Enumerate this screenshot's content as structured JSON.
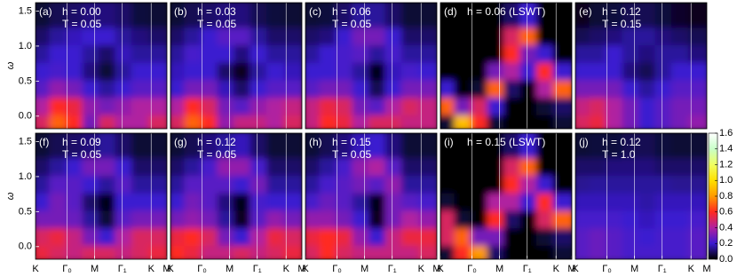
{
  "chart_data": [
    {
      "type": "heatmap",
      "panel_label": "(a)",
      "annotations": [
        "h = 0.00",
        "T = 0.05"
      ],
      "ylabel": "ω",
      "xlim": [
        0,
        1
      ],
      "ylim": [
        -0.18,
        1.62
      ],
      "yticks": [
        {
          "value": 0,
          "label": "0.0"
        },
        0.5,
        {
          "value": 1,
          "label": "1.0"
        },
        1.5
      ],
      "xbins": [
        0,
        0.125,
        0.25,
        0.375,
        0.5,
        0.625,
        0.75,
        0.875,
        1
      ],
      "ybins": [
        -0.18,
        0.05,
        0.3,
        0.55,
        0.8,
        1.05,
        1.3,
        1.62
      ],
      "z": [
        [
          0.5,
          0.7,
          0.6,
          0.3,
          0.5,
          0.4,
          0.4,
          0.5
        ],
        [
          0.4,
          0.6,
          0.55,
          0.35,
          0.3,
          0.35,
          0.4,
          0.4
        ],
        [
          0.25,
          0.35,
          0.3,
          0.2,
          0.15,
          0.2,
          0.25,
          0.25
        ],
        [
          0.2,
          0.22,
          0.2,
          0.12,
          0.05,
          0.15,
          0.2,
          0.2
        ],
        [
          0.15,
          0.2,
          0.2,
          0.15,
          0.1,
          0.18,
          0.15,
          0.15
        ],
        [
          0.1,
          0.15,
          0.18,
          0.2,
          0.2,
          0.15,
          0.12,
          0.1
        ],
        [
          0.05,
          0.08,
          0.1,
          0.12,
          0.12,
          0.1,
          0.06,
          0.05
        ]
      ]
    },
    {
      "type": "heatmap",
      "panel_label": "(b)",
      "annotations": [
        "h = 0.03",
        "T = 0.05"
      ],
      "xlim": [
        0,
        1
      ],
      "ylim": [
        -0.18,
        1.62
      ],
      "xbins": [
        0,
        0.125,
        0.25,
        0.375,
        0.5,
        0.625,
        0.75,
        0.875,
        1
      ],
      "ybins": [
        -0.18,
        0.05,
        0.3,
        0.55,
        0.8,
        1.05,
        1.3,
        1.62
      ],
      "z": [
        [
          0.5,
          0.7,
          0.6,
          0.35,
          0.45,
          0.45,
          0.4,
          0.5
        ],
        [
          0.4,
          0.6,
          0.5,
          0.3,
          0.25,
          0.35,
          0.4,
          0.45
        ],
        [
          0.2,
          0.3,
          0.3,
          0.18,
          0.1,
          0.2,
          0.25,
          0.25
        ],
        [
          0.18,
          0.2,
          0.2,
          0.1,
          0.03,
          0.15,
          0.2,
          0.18
        ],
        [
          0.15,
          0.22,
          0.2,
          0.2,
          0.12,
          0.2,
          0.15,
          0.15
        ],
        [
          0.1,
          0.15,
          0.2,
          0.25,
          0.25,
          0.15,
          0.1,
          0.1
        ],
        [
          0.05,
          0.08,
          0.1,
          0.12,
          0.12,
          0.08,
          0.06,
          0.05
        ]
      ]
    },
    {
      "type": "heatmap",
      "panel_label": "(c)",
      "annotations": [
        "h = 0.06",
        "T = 0.05"
      ],
      "xlim": [
        0,
        1
      ],
      "ylim": [
        -0.18,
        1.62
      ],
      "xbins": [
        0,
        0.125,
        0.25,
        0.375,
        0.5,
        0.625,
        0.75,
        0.875,
        1
      ],
      "ybins": [
        -0.18,
        0.05,
        0.3,
        0.55,
        0.8,
        1.05,
        1.3,
        1.62
      ],
      "z": [
        [
          0.45,
          0.6,
          0.55,
          0.4,
          0.5,
          0.5,
          0.45,
          0.45
        ],
        [
          0.45,
          0.55,
          0.5,
          0.3,
          0.25,
          0.4,
          0.5,
          0.45
        ],
        [
          0.25,
          0.3,
          0.3,
          0.2,
          0.08,
          0.2,
          0.3,
          0.3
        ],
        [
          0.2,
          0.2,
          0.22,
          0.15,
          0.02,
          0.18,
          0.22,
          0.2
        ],
        [
          0.15,
          0.2,
          0.22,
          0.25,
          0.15,
          0.22,
          0.15,
          0.15
        ],
        [
          0.1,
          0.12,
          0.2,
          0.3,
          0.3,
          0.2,
          0.1,
          0.1
        ],
        [
          0.05,
          0.06,
          0.1,
          0.15,
          0.15,
          0.1,
          0.05,
          0.05
        ]
      ]
    },
    {
      "type": "heatmap",
      "panel_label": "(d)",
      "annotations": [
        "h = 0.06 (LSWT)"
      ],
      "xlim": [
        0,
        1
      ],
      "ylim": [
        -0.18,
        1.62
      ],
      "xbins": [
        0,
        0.125,
        0.25,
        0.375,
        0.5,
        0.625,
        0.75,
        0.875,
        1
      ],
      "ybins": [
        -0.18,
        0.05,
        0.3,
        0.55,
        0.8,
        1.05,
        1.3,
        1.62
      ],
      "z": [
        [
          0.05,
          0.9,
          0.6,
          0.05,
          0,
          0,
          0,
          0.05
        ],
        [
          0.7,
          0.3,
          0.5,
          0.2,
          0,
          0,
          0.05,
          0.1
        ],
        [
          0.2,
          0,
          0.05,
          0.7,
          0.1,
          0,
          0.4,
          0.7
        ],
        [
          0,
          0,
          0,
          0.3,
          0.4,
          0.2,
          0.6,
          0.2
        ],
        [
          0,
          0,
          0,
          0,
          0.6,
          0.3,
          0.2,
          0
        ],
        [
          0,
          0,
          0,
          0,
          0.5,
          0.7,
          0,
          0
        ],
        [
          0,
          0,
          0,
          0,
          0.1,
          0.2,
          0,
          0
        ]
      ]
    },
    {
      "type": "heatmap",
      "panel_label": "(e)",
      "annotations": [
        "h = 0.12",
        "T = 0.15"
      ],
      "xlim": [
        0,
        1
      ],
      "ylim": [
        -0.18,
        1.62
      ],
      "xbins": [
        0,
        0.125,
        0.25,
        0.375,
        0.5,
        0.625,
        0.75,
        0.875,
        1
      ],
      "ybins": [
        -0.18,
        0.05,
        0.3,
        0.55,
        0.8,
        1.05,
        1.3,
        1.62
      ],
      "z": [
        [
          0.5,
          0.55,
          0.4,
          0.3,
          0.2,
          0.25,
          0.3,
          0.35
        ],
        [
          0.45,
          0.5,
          0.4,
          0.3,
          0.2,
          0.25,
          0.3,
          0.3
        ],
        [
          0.3,
          0.3,
          0.3,
          0.2,
          0.15,
          0.2,
          0.25,
          0.25
        ],
        [
          0.2,
          0.2,
          0.2,
          0.12,
          0.08,
          0.15,
          0.2,
          0.2
        ],
        [
          0.15,
          0.15,
          0.2,
          0.15,
          0.12,
          0.15,
          0.15,
          0.12
        ],
        [
          0.08,
          0.1,
          0.12,
          0.15,
          0.15,
          0.12,
          0.1,
          0.08
        ],
        [
          0.03,
          0.05,
          0.06,
          0.08,
          0.08,
          0.06,
          0.04,
          0.03
        ]
      ]
    },
    {
      "type": "heatmap",
      "panel_label": "(f)",
      "annotations": [
        "h = 0.09",
        "T = 0.05"
      ],
      "ylabel": "ω",
      "xlim": [
        0,
        1
      ],
      "ylim": [
        -0.18,
        1.62
      ],
      "yticks": [
        {
          "value": 0,
          "label": "0.0"
        },
        0.5,
        {
          "value": 1,
          "label": "1.0"
        },
        1.5
      ],
      "xticks": [
        {
          "value": 0,
          "label": "K"
        },
        {
          "value": 0.24,
          "label": "Γ₀"
        },
        {
          "value": 0.45,
          "label": "M"
        },
        {
          "value": 0.66,
          "label": "Γ₁"
        },
        {
          "value": 0.88,
          "label": "K"
        },
        {
          "value": 1,
          "label": "M"
        }
      ],
      "xbins": [
        0,
        0.125,
        0.25,
        0.375,
        0.5,
        0.625,
        0.75,
        0.875,
        1
      ],
      "ybins": [
        -0.18,
        0.05,
        0.3,
        0.55,
        0.8,
        1.05,
        1.3,
        1.62
      ],
      "z": [
        [
          0.55,
          0.5,
          0.45,
          0.5,
          0.5,
          0.45,
          0.5,
          0.55
        ],
        [
          0.5,
          0.55,
          0.45,
          0.3,
          0.2,
          0.4,
          0.5,
          0.5
        ],
        [
          0.3,
          0.3,
          0.28,
          0.15,
          0.05,
          0.25,
          0.3,
          0.3
        ],
        [
          0.2,
          0.3,
          0.25,
          0.1,
          0.02,
          0.2,
          0.2,
          0.2
        ],
        [
          0.15,
          0.25,
          0.25,
          0.2,
          0.15,
          0.25,
          0.15,
          0.15
        ],
        [
          0.1,
          0.15,
          0.2,
          0.3,
          0.3,
          0.2,
          0.1,
          0.1
        ],
        [
          0.05,
          0.08,
          0.1,
          0.12,
          0.15,
          0.1,
          0.05,
          0.05
        ]
      ]
    },
    {
      "type": "heatmap",
      "panel_label": "(g)",
      "annotations": [
        "h = 0.12",
        "T = 0.05"
      ],
      "xlim": [
        0,
        1
      ],
      "ylim": [
        -0.18,
        1.62
      ],
      "xticks": [
        {
          "value": 0,
          "label": "K"
        },
        {
          "value": 0.24,
          "label": "Γ₀"
        },
        {
          "value": 0.45,
          "label": "M"
        },
        {
          "value": 0.66,
          "label": "Γ₁"
        },
        {
          "value": 0.88,
          "label": "K"
        },
        {
          "value": 1,
          "label": "M"
        }
      ],
      "xbins": [
        0,
        0.125,
        0.25,
        0.375,
        0.5,
        0.625,
        0.75,
        0.875,
        1
      ],
      "ybins": [
        -0.18,
        0.05,
        0.3,
        0.55,
        0.8,
        1.05,
        1.3,
        1.62
      ],
      "z": [
        [
          0.6,
          0.55,
          0.45,
          0.45,
          0.5,
          0.45,
          0.5,
          0.55
        ],
        [
          0.55,
          0.6,
          0.5,
          0.3,
          0.2,
          0.4,
          0.55,
          0.5
        ],
        [
          0.3,
          0.35,
          0.3,
          0.15,
          0.03,
          0.25,
          0.35,
          0.3
        ],
        [
          0.2,
          0.3,
          0.25,
          0.12,
          0.02,
          0.22,
          0.2,
          0.2
        ],
        [
          0.15,
          0.25,
          0.25,
          0.25,
          0.2,
          0.3,
          0.15,
          0.15
        ],
        [
          0.1,
          0.15,
          0.22,
          0.35,
          0.35,
          0.22,
          0.1,
          0.1
        ],
        [
          0.05,
          0.08,
          0.12,
          0.15,
          0.18,
          0.1,
          0.05,
          0.05
        ]
      ]
    },
    {
      "type": "heatmap",
      "panel_label": "(h)",
      "annotations": [
        "h = 0.15",
        "T = 0.05"
      ],
      "xlim": [
        0,
        1
      ],
      "ylim": [
        -0.18,
        1.62
      ],
      "xticks": [
        {
          "value": 0,
          "label": "K"
        },
        {
          "value": 0.24,
          "label": "Γ₀"
        },
        {
          "value": 0.45,
          "label": "M"
        },
        {
          "value": 0.66,
          "label": "Γ₁"
        },
        {
          "value": 0.88,
          "label": "K"
        },
        {
          "value": 1,
          "label": "M"
        }
      ],
      "xbins": [
        0,
        0.125,
        0.25,
        0.375,
        0.5,
        0.625,
        0.75,
        0.875,
        1
      ],
      "ybins": [
        -0.18,
        0.05,
        0.3,
        0.55,
        0.8,
        1.05,
        1.3,
        1.62
      ],
      "z": [
        [
          0.5,
          0.6,
          0.5,
          0.45,
          0.45,
          0.45,
          0.45,
          0.5
        ],
        [
          0.55,
          0.6,
          0.55,
          0.35,
          0.2,
          0.45,
          0.55,
          0.55
        ],
        [
          0.35,
          0.35,
          0.3,
          0.2,
          0.03,
          0.3,
          0.4,
          0.35
        ],
        [
          0.22,
          0.28,
          0.25,
          0.15,
          0.02,
          0.3,
          0.25,
          0.22
        ],
        [
          0.15,
          0.22,
          0.25,
          0.3,
          0.25,
          0.35,
          0.15,
          0.15
        ],
        [
          0.1,
          0.15,
          0.22,
          0.35,
          0.4,
          0.25,
          0.1,
          0.1
        ],
        [
          0.05,
          0.08,
          0.12,
          0.18,
          0.2,
          0.12,
          0.05,
          0.05
        ]
      ]
    },
    {
      "type": "heatmap",
      "panel_label": "(i)",
      "annotations": [
        "h = 0.15 (LSWT)"
      ],
      "xlim": [
        0,
        1
      ],
      "ylim": [
        -0.18,
        1.62
      ],
      "xticks": [
        {
          "value": 0,
          "label": "K"
        },
        {
          "value": 0.24,
          "label": "Γ₀"
        },
        {
          "value": 0.45,
          "label": "M"
        },
        {
          "value": 0.66,
          "label": "Γ₁"
        },
        {
          "value": 0.88,
          "label": "K"
        },
        {
          "value": 1,
          "label": "M"
        }
      ],
      "xbins": [
        0,
        0.125,
        0.25,
        0.375,
        0.5,
        0.625,
        0.75,
        0.875,
        1
      ],
      "ybins": [
        -0.18,
        0.05,
        0.3,
        0.55,
        0.8,
        1.05,
        1.3,
        1.62
      ],
      "z": [
        [
          0.05,
          0.6,
          0.8,
          0.1,
          0,
          0,
          0,
          0.05
        ],
        [
          0.5,
          0.7,
          0.3,
          0.3,
          0,
          0,
          0.05,
          0.1
        ],
        [
          0.5,
          0.05,
          0,
          0.6,
          0.1,
          0,
          0.5,
          0.7
        ],
        [
          0.05,
          0,
          0,
          0.4,
          0.4,
          0.2,
          0.6,
          0.2
        ],
        [
          0,
          0,
          0,
          0,
          0.6,
          0.4,
          0.2,
          0
        ],
        [
          0,
          0,
          0,
          0,
          0.5,
          0.7,
          0,
          0
        ],
        [
          0,
          0,
          0,
          0,
          0.1,
          0.2,
          0,
          0
        ]
      ]
    },
    {
      "type": "heatmap",
      "panel_label": "(j)",
      "annotations": [
        "h = 0.12",
        "T = 1.0"
      ],
      "xlim": [
        0,
        1
      ],
      "ylim": [
        -0.18,
        1.62
      ],
      "xticks": [
        {
          "value": 0,
          "label": "K"
        },
        {
          "value": 0.24,
          "label": "Γ₀"
        },
        {
          "value": 0.45,
          "label": "M"
        },
        {
          "value": 0.66,
          "label": "Γ₁"
        },
        {
          "value": 0.88,
          "label": "K"
        },
        {
          "value": 1,
          "label": "M"
        }
      ],
      "xbins": [
        0,
        0.125,
        0.25,
        0.375,
        0.5,
        0.625,
        0.75,
        0.875,
        1
      ],
      "ybins": [
        -0.18,
        0.05,
        0.3,
        0.55,
        0.8,
        1.05,
        1.3,
        1.62
      ],
      "z": [
        [
          0.25,
          0.28,
          0.25,
          0.22,
          0.22,
          0.22,
          0.22,
          0.25
        ],
        [
          0.25,
          0.28,
          0.25,
          0.22,
          0.2,
          0.22,
          0.22,
          0.25
        ],
        [
          0.22,
          0.22,
          0.22,
          0.2,
          0.18,
          0.2,
          0.2,
          0.22
        ],
        [
          0.18,
          0.18,
          0.18,
          0.18,
          0.16,
          0.18,
          0.18,
          0.18
        ],
        [
          0.14,
          0.15,
          0.15,
          0.15,
          0.15,
          0.15,
          0.14,
          0.14
        ],
        [
          0.1,
          0.1,
          0.12,
          0.12,
          0.12,
          0.1,
          0.1,
          0.1
        ],
        [
          0.05,
          0.06,
          0.06,
          0.08,
          0.08,
          0.06,
          0.05,
          0.05
        ]
      ]
    },
    {
      "type": "colorbar",
      "zlim": [
        0,
        1.6
      ],
      "zticks": [
        {
          "value": 0,
          "label": "0.0"
        },
        0.2,
        0.4,
        0.6,
        0.8,
        {
          "value": 1,
          "label": "1.0"
        },
        1.2,
        1.4,
        1.6
      ],
      "colors": [
        "#000000",
        "#3a1ad0",
        "#b020a0",
        "#ff2a20",
        "#ff9a00",
        "#ffe000",
        "#f0ff60",
        "#c8ffc8",
        "#ffffff"
      ]
    }
  ]
}
